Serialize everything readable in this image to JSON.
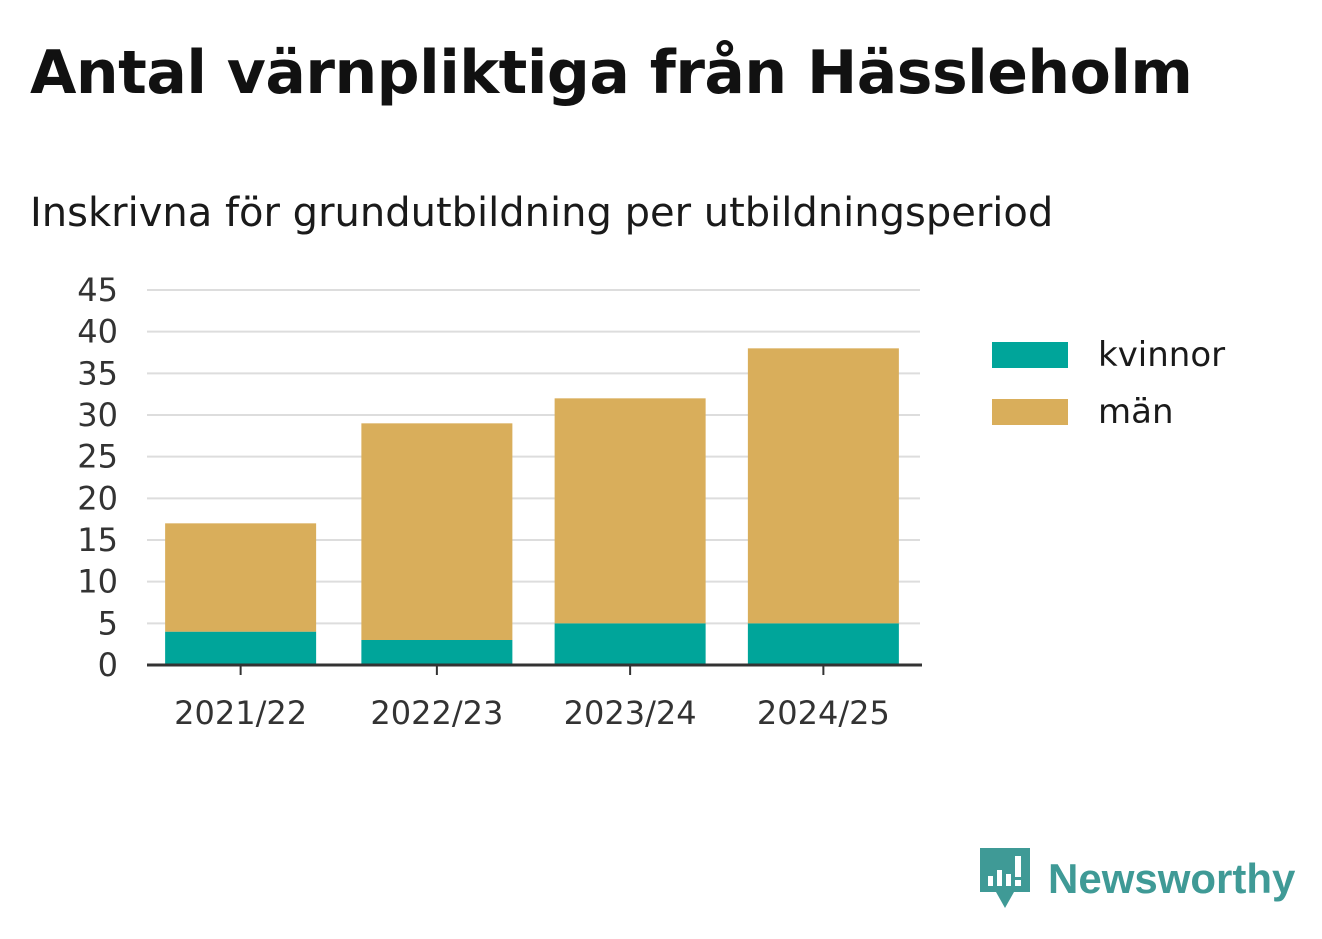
{
  "title": "Antal värnpliktiga från Hässleholm",
  "subtitle": "Inskrivna för grundutbildning per utbildningsperiod",
  "chart_data": {
    "type": "bar",
    "stacked": true,
    "categories": [
      "2021/22",
      "2022/23",
      "2023/24",
      "2024/25"
    ],
    "series": [
      {
        "name": "kvinnor",
        "color": "#00a59a",
        "values": [
          4,
          3,
          5,
          5
        ]
      },
      {
        "name": "män",
        "color": "#d9ae5b",
        "values": [
          13,
          26,
          27,
          33
        ]
      }
    ],
    "ylim": [
      0,
      45
    ],
    "yticks": [
      0,
      5,
      10,
      15,
      20,
      25,
      30,
      35,
      40,
      45
    ],
    "grid": true,
    "legend": "right"
  },
  "legend": {
    "items": [
      {
        "label": "kvinnor",
        "color": "#00a59a"
      },
      {
        "label": "män",
        "color": "#d9ae5b"
      }
    ]
  },
  "brand": {
    "name": "Newsworthy",
    "icon": "newsworthy-logo-icon",
    "color": "#3f9a96"
  }
}
